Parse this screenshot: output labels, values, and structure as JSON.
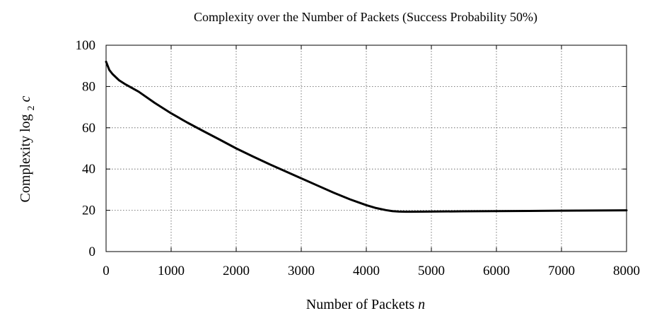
{
  "chart_data": {
    "type": "line",
    "title": "Complexity over the Number of Packets (Success Probability 50%)",
    "xlabel": "Number of Packets",
    "xlabel_var": "n",
    "ylabel": "Complexity log",
    "ylabel_sub": "2",
    "ylabel_var": "c",
    "xlim": [
      0,
      8000
    ],
    "ylim": [
      0,
      100
    ],
    "xticks": [
      0,
      1000,
      2000,
      3000,
      4000,
      5000,
      6000,
      7000,
      8000
    ],
    "yticks": [
      0,
      20,
      40,
      60,
      80,
      100
    ],
    "grid": true,
    "line_color": "#000000",
    "series": [
      {
        "x": [
          0,
          50,
          100,
          200,
          300,
          500,
          750,
          1000,
          1250,
          1500,
          1750,
          2000,
          2250,
          2500,
          2750,
          3000,
          3250,
          3500,
          3750,
          4000,
          4150,
          4300,
          4400,
          4500,
          4600,
          4700,
          5000,
          5500,
          6000,
          6500,
          7000,
          7500,
          8000
        ],
        "y": [
          92,
          88,
          86,
          83,
          81,
          77.5,
          72,
          67,
          62.5,
          58.3,
          54.2,
          50,
          46.2,
          42.5,
          39,
          35.5,
          32,
          28.5,
          25.3,
          22.5,
          21.1,
          20.1,
          19.6,
          19.4,
          19.3,
          19.3,
          19.4,
          19.5,
          19.6,
          19.7,
          19.8,
          19.9,
          20
        ]
      }
    ]
  }
}
